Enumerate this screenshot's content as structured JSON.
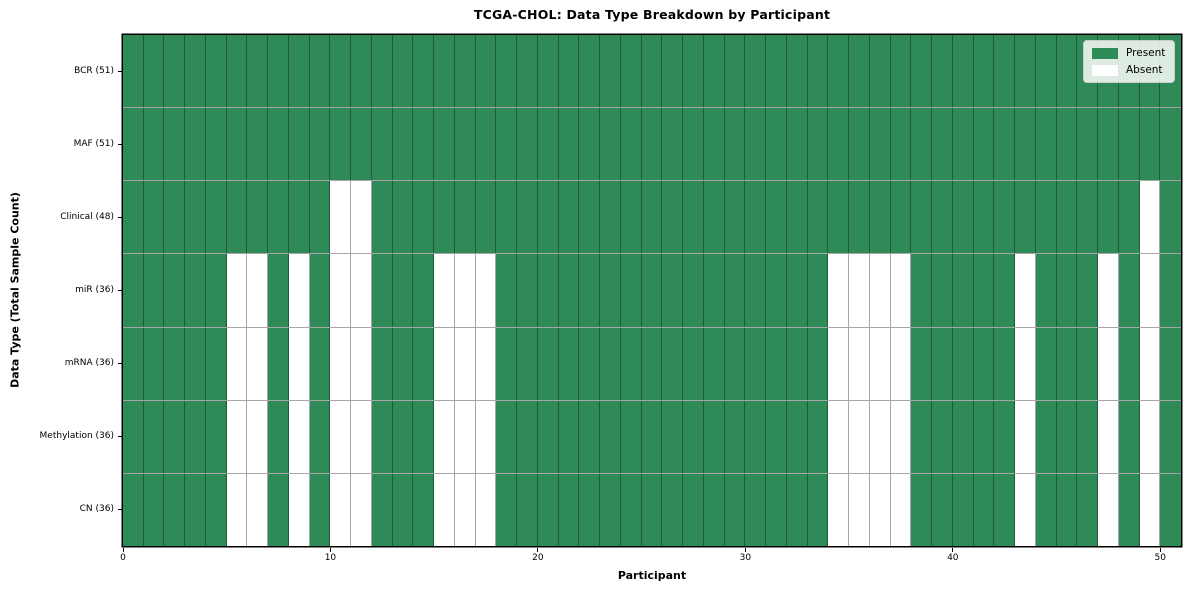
{
  "figure": {
    "title": "TCGA-CHOL: Data Type Breakdown by Participant",
    "xlabel": "Participant",
    "ylabel": "Data Type (Total Sample Count)"
  },
  "legend": {
    "items": [
      {
        "label": "Present",
        "color": "#2E8B57"
      },
      {
        "label": "Absent",
        "color": "#FFFFFF"
      }
    ]
  },
  "chart_data": {
    "type": "heatmap",
    "title": "TCGA-CHOL: Data Type Breakdown by Participant",
    "xlabel": "Participant",
    "ylabel": "Data Type (Total Sample Count)",
    "n_participants": 51,
    "xlim": [
      0,
      51
    ],
    "x_ticks": [
      0,
      10,
      20,
      30,
      40,
      50
    ],
    "grid": true,
    "legend_position": "upper right",
    "colors": {
      "present": "#2E8B57",
      "absent": "#FFFFFF",
      "cell_border": "rgba(0,0,0,0.35)"
    },
    "value_encoding": {
      "1": "Present",
      "0": "Absent"
    },
    "rows": [
      {
        "label": "BCR (51)",
        "total_present": 51,
        "absent_participants": []
      },
      {
        "label": "MAF (51)",
        "total_present": 51,
        "absent_participants": []
      },
      {
        "label": "Clinical (48)",
        "total_present": 48,
        "absent_participants": [
          10,
          11,
          49
        ]
      },
      {
        "label": "miR (36)",
        "total_present": 36,
        "absent_participants": [
          5,
          6,
          8,
          10,
          11,
          15,
          16,
          17,
          34,
          35,
          36,
          37,
          43,
          47,
          49
        ]
      },
      {
        "label": "mRNA (36)",
        "total_present": 36,
        "absent_participants": [
          5,
          6,
          8,
          10,
          11,
          15,
          16,
          17,
          34,
          35,
          36,
          37,
          43,
          47,
          49
        ]
      },
      {
        "label": "Methylation (36)",
        "total_present": 36,
        "absent_participants": [
          5,
          6,
          8,
          10,
          11,
          15,
          16,
          17,
          34,
          35,
          36,
          37,
          43,
          47,
          49
        ]
      },
      {
        "label": "CN (36)",
        "total_present": 36,
        "absent_participants": [
          5,
          6,
          8,
          10,
          11,
          15,
          16,
          17,
          34,
          35,
          36,
          37,
          43,
          47,
          49
        ]
      }
    ]
  }
}
